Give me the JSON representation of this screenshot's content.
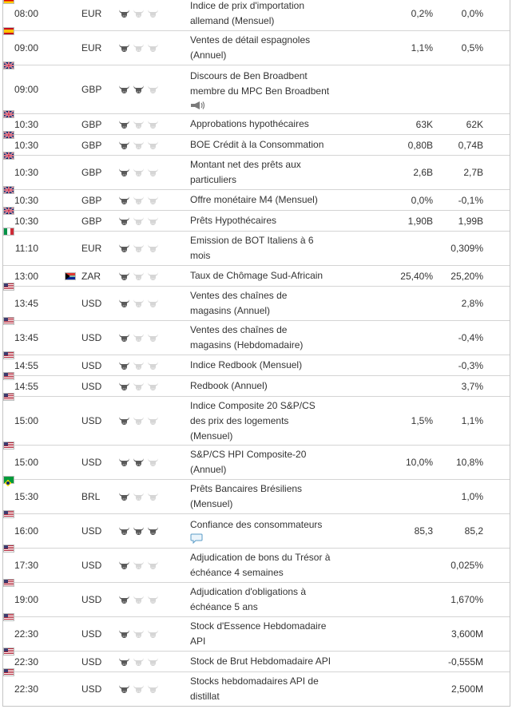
{
  "rows": [
    {
      "time": "08:00",
      "flag": "de",
      "currency": "EUR",
      "importance": 1,
      "event": [
        "Indice de prix d'importation",
        "allemand (Mensuel)"
      ],
      "actual": "0,2%",
      "forecast": "0,0%",
      "h": "h2"
    },
    {
      "time": "09:00",
      "flag": "es",
      "currency": "EUR",
      "importance": 1,
      "event": [
        "Ventes de détail espagnoles",
        "(Annuel)"
      ],
      "actual": "1,1%",
      "forecast": "0,5%",
      "h": "h2"
    },
    {
      "time": "09:00",
      "flag": "gb",
      "currency": "GBP",
      "importance": 2,
      "event": [
        "Discours de Ben Broadbent",
        "membre du MPC Ben Broadbent"
      ],
      "icon": "speaker-icon",
      "actual": "",
      "forecast": "",
      "h": "h3"
    },
    {
      "time": "10:30",
      "flag": "gb",
      "currency": "GBP",
      "importance": 1,
      "event": [
        "Approbations hypothécaires"
      ],
      "actual": "63K",
      "forecast": "62K",
      "h": "h1"
    },
    {
      "time": "10:30",
      "flag": "gb",
      "currency": "GBP",
      "importance": 1,
      "event": [
        "BOE Crédit à la Consommation"
      ],
      "actual": "0,80B",
      "forecast": "0,74B",
      "h": "h1"
    },
    {
      "time": "10:30",
      "flag": "gb",
      "currency": "GBP",
      "importance": 1,
      "event": [
        "Montant net des prêts aux",
        "particuliers"
      ],
      "actual": "2,6B",
      "forecast": "2,7B",
      "h": "h2"
    },
    {
      "time": "10:30",
      "flag": "gb",
      "currency": "GBP",
      "importance": 1,
      "event": [
        "Offre monétaire M4 (Mensuel)"
      ],
      "actual": "0,0%",
      "forecast": "-0,1%",
      "h": "h1"
    },
    {
      "time": "10:30",
      "flag": "gb",
      "currency": "GBP",
      "importance": 1,
      "event": [
        "Prêts Hypothécaires"
      ],
      "actual": "1,90B",
      "forecast": "1,99B",
      "h": "h1"
    },
    {
      "time": "11:10",
      "flag": "it",
      "currency": "EUR",
      "importance": 1,
      "event": [
        "Emission de BOT Italiens à 6",
        "mois"
      ],
      "actual": "",
      "forecast": "0,309%",
      "h": "h2"
    },
    {
      "time": "13:00",
      "flag": "za",
      "currency": "ZAR",
      "importance": 1,
      "event": [
        "Taux de Chômage Sud-Africain"
      ],
      "actual": "25,40%",
      "forecast": "25,20%",
      "h": "h1"
    },
    {
      "time": "13:45",
      "flag": "us",
      "currency": "USD",
      "importance": 1,
      "event": [
        "Ventes des chaînes de",
        "magasins (Annuel)"
      ],
      "actual": "",
      "forecast": "2,8%",
      "h": "h2"
    },
    {
      "time": "13:45",
      "flag": "us",
      "currency": "USD",
      "importance": 1,
      "event": [
        "Ventes des chaînes de",
        "magasins (Hebdomadaire)"
      ],
      "actual": "",
      "forecast": "-0,4%",
      "h": "h2"
    },
    {
      "time": "14:55",
      "flag": "us",
      "currency": "USD",
      "importance": 1,
      "event": [
        "Indice Redbook (Mensuel)"
      ],
      "actual": "",
      "forecast": "-0,3%",
      "h": "h1"
    },
    {
      "time": "14:55",
      "flag": "us",
      "currency": "USD",
      "importance": 1,
      "event": [
        "Redbook (Annuel)"
      ],
      "actual": "",
      "forecast": "3,7%",
      "h": "h1"
    },
    {
      "time": "15:00",
      "flag": "us",
      "currency": "USD",
      "importance": 1,
      "event": [
        "Indice Composite 20 S&P/CS",
        "des prix des logements",
        "(Mensuel)"
      ],
      "actual": "1,5%",
      "forecast": "1,1%",
      "h": "h3"
    },
    {
      "time": "15:00",
      "flag": "us",
      "currency": "USD",
      "importance": 2,
      "event": [
        "S&P/CS HPI Composite-20",
        "(Annuel)"
      ],
      "actual": "10,0%",
      "forecast": "10,8%",
      "h": "h2"
    },
    {
      "time": "15:30",
      "flag": "br",
      "currency": "BRL",
      "importance": 1,
      "event": [
        "Prêts Bancaires Brésiliens",
        "(Mensuel)"
      ],
      "actual": "",
      "forecast": "1,0%",
      "h": "h2"
    },
    {
      "time": "16:00",
      "flag": "us",
      "currency": "USD",
      "importance": 3,
      "event": [
        "Confiance des consommateurs"
      ],
      "icon": "comment-icon",
      "actual": "85,3",
      "forecast": "85,2",
      "h": "h2"
    },
    {
      "time": "17:30",
      "flag": "us",
      "currency": "USD",
      "importance": 1,
      "event": [
        "Adjudication de bons du Trésor à",
        "échéance 4 semaines"
      ],
      "actual": "",
      "forecast": "0,025%",
      "h": "h2"
    },
    {
      "time": "19:00",
      "flag": "us",
      "currency": "USD",
      "importance": 1,
      "event": [
        "Adjudication d'obligations à",
        "échéance 5 ans"
      ],
      "actual": "",
      "forecast": "1,670%",
      "h": "h2"
    },
    {
      "time": "22:30",
      "flag": "us",
      "currency": "USD",
      "importance": 1,
      "event": [
        "Stock d'Essence Hebdomadaire",
        "API"
      ],
      "actual": "",
      "forecast": "3,600M",
      "h": "h2"
    },
    {
      "time": "22:30",
      "flag": "us",
      "currency": "USD",
      "importance": 1,
      "event": [
        "Stock de Brut Hebdomadaire API"
      ],
      "actual": "",
      "forecast": "-0,555M",
      "h": "h1"
    },
    {
      "time": "22:30",
      "flag": "us",
      "currency": "USD",
      "importance": 1,
      "event": [
        "Stocks hebdomadaires API de",
        "distillat"
      ],
      "actual": "",
      "forecast": "2,500M",
      "h": "h2"
    }
  ],
  "colors": {
    "bull_on": "#5a5a5a",
    "bull_off": "#d6d6d6",
    "border": "#d4d4d4"
  }
}
